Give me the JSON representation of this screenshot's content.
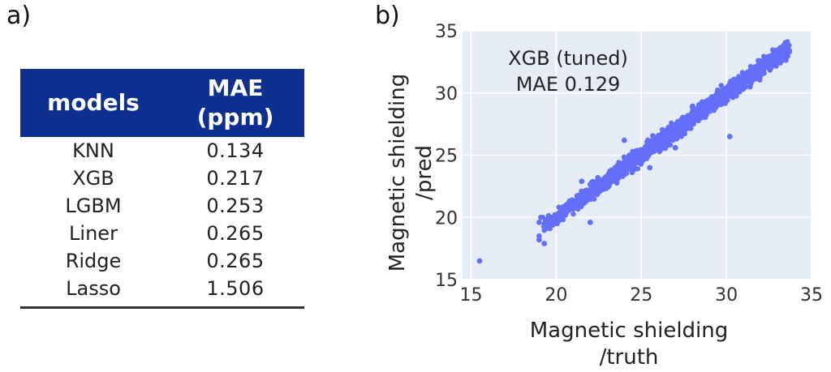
{
  "panels": {
    "a": "a)",
    "b": "b)"
  },
  "table": {
    "headers": {
      "models": "models",
      "mae_line1": "MAE",
      "mae_line2": "(ppm)"
    },
    "rows": [
      {
        "model": "KNN",
        "mae": "0.134"
      },
      {
        "model": "XGB",
        "mae": "0.217"
      },
      {
        "model": "LGBM",
        "mae": "0.253"
      },
      {
        "model": "Liner",
        "mae": "0.265"
      },
      {
        "model": "Ridge",
        "mae": "0.265"
      },
      {
        "model": "Lasso",
        "mae": "1.506"
      }
    ],
    "header_color": "#0d2f8f"
  },
  "chart_data": {
    "type": "scatter",
    "xlabel_lines": [
      "Magnetic shielding",
      "/truth"
    ],
    "ylabel_lines": [
      "Magnetic shielding",
      "/pred"
    ],
    "annotation_lines": [
      "XGB (tuned)",
      "MAE 0.129"
    ],
    "xlim": [
      14.5,
      35
    ],
    "ylim": [
      15,
      35
    ],
    "xticks": [
      15,
      20,
      25,
      30,
      35
    ],
    "yticks": [
      15,
      20,
      25,
      30,
      35
    ],
    "grid": true,
    "background_color": "#e5ecf6",
    "marker_color": "#636efa",
    "points": [
      [
        15.5,
        16.5
      ],
      [
        19.0,
        18.2
      ],
      [
        19.0,
        18.5
      ],
      [
        19.3,
        17.9
      ],
      [
        19.0,
        19.6
      ],
      [
        19.1,
        20.0
      ],
      [
        19.4,
        19.8
      ],
      [
        19.7,
        20.0
      ],
      [
        20.2,
        20.1
      ],
      [
        20.5,
        20.6
      ],
      [
        20.8,
        21.0
      ],
      [
        21.0,
        21.2
      ],
      [
        21.5,
        22.9
      ],
      [
        21.8,
        21.6
      ],
      [
        22.0,
        19.6
      ],
      [
        22.2,
        22.0
      ],
      [
        22.4,
        22.4
      ],
      [
        22.8,
        22.7
      ],
      [
        23.0,
        23.0
      ],
      [
        23.3,
        23.4
      ],
      [
        23.6,
        23.5
      ],
      [
        24.0,
        24.1
      ],
      [
        24.3,
        24.4
      ],
      [
        24.6,
        24.5
      ],
      [
        25.0,
        25.0
      ],
      [
        25.3,
        25.5
      ],
      [
        25.6,
        25.7
      ],
      [
        26.0,
        26.1
      ],
      [
        26.3,
        26.3
      ],
      [
        26.6,
        26.7
      ],
      [
        27.0,
        27.1
      ],
      [
        27.3,
        27.4
      ],
      [
        27.6,
        27.8
      ],
      [
        28.0,
        28.1
      ],
      [
        28.3,
        28.5
      ],
      [
        28.6,
        28.8
      ],
      [
        29.0,
        29.2
      ],
      [
        29.3,
        29.4
      ],
      [
        29.6,
        29.9
      ],
      [
        30.0,
        30.2
      ],
      [
        30.2,
        26.5
      ],
      [
        30.4,
        30.5
      ],
      [
        30.8,
        30.9
      ],
      [
        31.2,
        31.3
      ],
      [
        31.6,
        31.8
      ],
      [
        32.0,
        32.2
      ],
      [
        32.4,
        32.5
      ],
      [
        32.8,
        32.9
      ],
      [
        33.2,
        33.4
      ],
      [
        33.6,
        33.6
      ],
      [
        33.7,
        33.4
      ],
      [
        24.0,
        26.2
      ],
      [
        27.0,
        25.6
      ],
      [
        25.5,
        24.0
      ]
    ]
  }
}
